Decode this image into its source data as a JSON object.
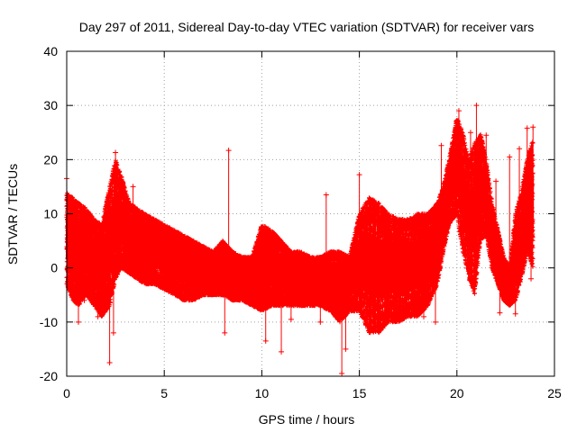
{
  "chart_data": {
    "type": "scatter",
    "title": "Day 297 of 2011, Sidereal Day-to-day VTEC variation (SDTVAR) for receiver vars",
    "xlabel": "GPS time / hours",
    "ylabel": "SDTVAR / TECUs",
    "xlim": [
      0,
      25
    ],
    "ylim": [
      -20,
      40
    ],
    "xticks": [
      0,
      5,
      10,
      15,
      20,
      25
    ],
    "yticks": [
      -20,
      -10,
      0,
      10,
      20,
      30,
      40
    ],
    "grid": true,
    "marker": "+",
    "color": "#ff0000",
    "envelope": {
      "x": [
        0.0,
        0.3,
        0.6,
        1.0,
        1.4,
        1.8,
        2.2,
        2.5,
        2.8,
        3.2,
        3.6,
        4.0,
        4.5,
        5.0,
        5.5,
        6.0,
        6.5,
        7.0,
        7.5,
        8.0,
        8.5,
        9.0,
        9.5,
        10.0,
        10.5,
        11.0,
        11.5,
        12.0,
        12.5,
        13.0,
        13.5,
        14.0,
        14.5,
        15.0,
        15.5,
        16.0,
        16.5,
        17.0,
        17.5,
        18.0,
        18.5,
        19.0,
        19.3,
        19.6,
        20.0,
        20.3,
        20.6,
        20.9,
        21.2,
        21.5,
        21.8,
        22.1,
        22.4,
        22.7,
        23.0,
        23.3,
        23.6,
        23.9
      ],
      "upper": [
        14,
        13,
        12,
        11,
        9,
        8,
        15,
        20,
        17,
        12,
        11,
        10,
        9,
        8,
        7,
        6,
        5,
        4,
        3,
        5,
        3,
        2,
        2,
        8,
        7,
        5,
        3,
        3,
        2,
        2,
        3,
        3,
        2,
        10,
        13,
        12,
        10,
        9,
        9,
        10,
        10,
        12,
        15,
        20,
        28,
        25,
        20,
        23,
        25,
        20,
        12,
        7,
        2,
        0,
        10,
        14,
        20,
        24
      ],
      "lower": [
        -3,
        -6,
        -7,
        -5,
        -7,
        -9,
        -7,
        -2,
        0,
        -1,
        -2,
        -3,
        -3,
        -4,
        -5,
        -6,
        -6,
        -5,
        -5,
        -5,
        -6,
        -6,
        -7,
        -8,
        -7,
        -7,
        -7,
        -7,
        -7,
        -7,
        -8,
        -10,
        -8,
        -8,
        -12,
        -12,
        -10,
        -10,
        -9,
        -9,
        -7,
        -3,
        3,
        8,
        10,
        3,
        -2,
        -5,
        5,
        6,
        0,
        -3,
        -6,
        -7,
        -6,
        -2,
        3,
        0
      ]
    },
    "outliers": [
      {
        "x": 0.0,
        "y": 16.5
      },
      {
        "x": 0.6,
        "y": -10
      },
      {
        "x": 0.9,
        "y": -6
      },
      {
        "x": 1.6,
        "y": -9
      },
      {
        "x": 2.2,
        "y": -17.5
      },
      {
        "x": 2.4,
        "y": -12
      },
      {
        "x": 2.5,
        "y": 21.3
      },
      {
        "x": 3.4,
        "y": 15
      },
      {
        "x": 8.1,
        "y": -12
      },
      {
        "x": 8.3,
        "y": 21.7
      },
      {
        "x": 10.2,
        "y": -13.5
      },
      {
        "x": 11.0,
        "y": -15.5
      },
      {
        "x": 11.5,
        "y": -9.5
      },
      {
        "x": 13.0,
        "y": -10
      },
      {
        "x": 13.3,
        "y": 13.5
      },
      {
        "x": 14.1,
        "y": -19.5
      },
      {
        "x": 14.3,
        "y": -15
      },
      {
        "x": 15.0,
        "y": 17.2
      },
      {
        "x": 18.3,
        "y": -9
      },
      {
        "x": 18.9,
        "y": -10
      },
      {
        "x": 19.2,
        "y": 22.6
      },
      {
        "x": 20.1,
        "y": 29
      },
      {
        "x": 20.7,
        "y": 25
      },
      {
        "x": 21.0,
        "y": 30
      },
      {
        "x": 21.5,
        "y": 24.5
      },
      {
        "x": 22.0,
        "y": 16
      },
      {
        "x": 22.2,
        "y": -8.3
      },
      {
        "x": 22.7,
        "y": 20.5
      },
      {
        "x": 23.2,
        "y": 22
      },
      {
        "x": 23.6,
        "y": 25.8
      },
      {
        "x": 23.9,
        "y": 26
      },
      {
        "x": 23.0,
        "y": -8.5
      },
      {
        "x": 23.8,
        "y": -2
      }
    ]
  }
}
